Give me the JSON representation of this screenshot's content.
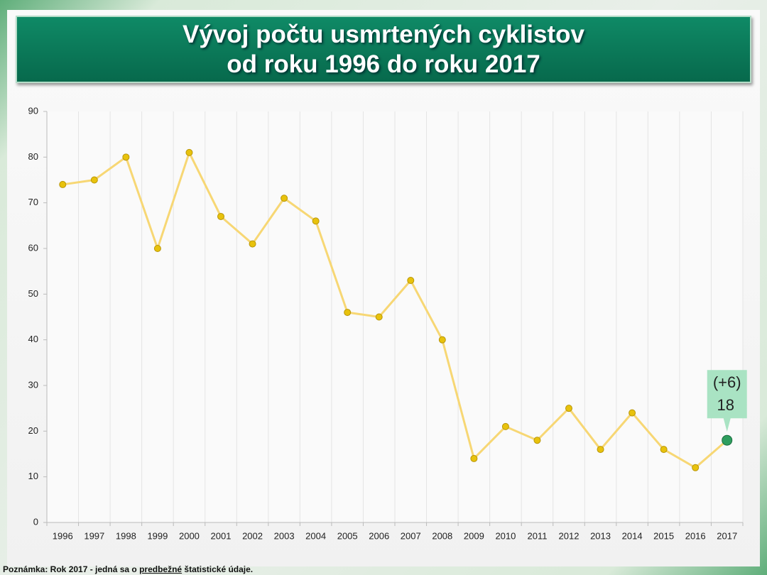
{
  "title": [
    "Vývoj počtu usmrtených cyklistov",
    "od roku 1996 do roku 2017"
  ],
  "footnote": [
    "Poznámka: Rok 2017 - jedná sa o ",
    "predbežné",
    " štatistické údaje."
  ],
  "chart_data": {
    "type": "line",
    "categories": [
      "1996",
      "1997",
      "1998",
      "1999",
      "2000",
      "2001",
      "2002",
      "2003",
      "2004",
      "2005",
      "2006",
      "2007",
      "2008",
      "2009",
      "2010",
      "2011",
      "2012",
      "2013",
      "2014",
      "2015",
      "2016",
      "2017"
    ],
    "values": [
      74,
      75,
      80,
      60,
      81,
      67,
      61,
      71,
      66,
      46,
      45,
      53,
      40,
      14,
      21,
      18,
      25,
      16,
      24,
      16,
      12,
      18
    ],
    "color": "#f7d774",
    "marker_color": "#e8c20c",
    "highlight_color": "#2e9e5e",
    "annotation": "(+6)",
    "annotation_color": "#a9e3c3",
    "ylim": [
      0,
      90
    ],
    "yticks": [
      0,
      10,
      20,
      30,
      40,
      50,
      60,
      70,
      80,
      90
    ],
    "grid": "x"
  }
}
